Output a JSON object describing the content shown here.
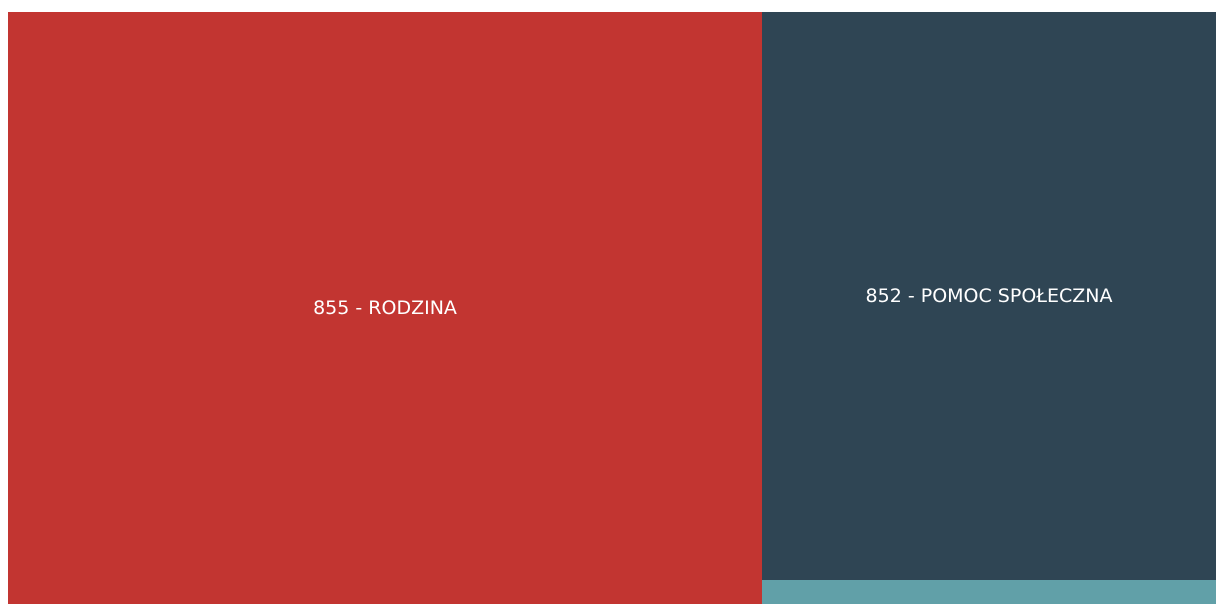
{
  "tiles": [
    {
      "label": "855 - RODZINA",
      "color": "#c23531"
    },
    {
      "label": "852 - POMOC SPOŁECZNA",
      "color": "#2f4554"
    },
    {
      "color": "#61a0a8"
    }
  ]
}
